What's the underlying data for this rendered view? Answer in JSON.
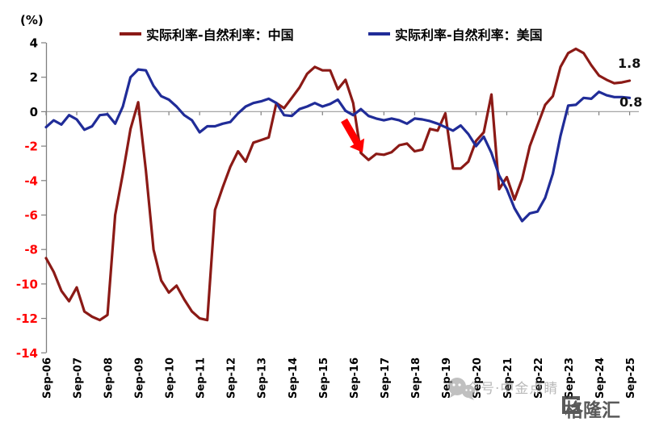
{
  "unit_label": "(%)",
  "legend": {
    "china": {
      "label": "实际利率-自然利率：中国"
    },
    "us": {
      "label": "实际利率-自然利率：美国"
    }
  },
  "annotations": {
    "china_end_value": "1.8",
    "us_end_value": "0.8",
    "arrow_note": "sharp-drop-red-arrow"
  },
  "watermarks": {
    "wechat_text": "公众号·中金点睛",
    "logo_text": "格隆汇"
  },
  "colors": {
    "china": "#8B1A16",
    "us": "#202C98",
    "positive_tick": "#000000",
    "negative_tick": "#FF0000",
    "axis": "#7F7F7F",
    "zero_line": "#A6A6A6",
    "arrow": "#FF0000"
  },
  "chart_data": {
    "type": "line",
    "title": "",
    "xlabel": "",
    "ylabel": "(%)",
    "x_frequency": "quarterly",
    "x_start": "Sep-06",
    "x_end": "Sep-25",
    "x_tick_labels": [
      "Sep-06",
      "Sep-07",
      "Sep-08",
      "Sep-09",
      "Sep-10",
      "Sep-11",
      "Sep-12",
      "Sep-13",
      "Sep-14",
      "Sep-15",
      "Sep-16",
      "Sep-17",
      "Sep-18",
      "Sep-19",
      "Sep-20",
      "Sep-21",
      "Sep-22",
      "Sep-23",
      "Sep-24",
      "Sep-25"
    ],
    "y_ticks": [
      4,
      2,
      0,
      -2,
      -4,
      -6,
      -8,
      -10,
      -12,
      -14
    ],
    "ylim": [
      -14,
      4
    ],
    "grid": "zero-line-only",
    "legend_position": "top",
    "series": [
      {
        "name": "实际利率-自然利率：中国",
        "color": "#8B1A16",
        "end_label": "1.8",
        "values": [
          -8.5,
          -9.3,
          -10.4,
          -11.0,
          -10.2,
          -11.6,
          -11.9,
          -12.1,
          -11.8,
          -6.0,
          -3.6,
          -1.0,
          0.55,
          -3.4,
          -8.0,
          -9.8,
          -10.5,
          -10.1,
          -10.9,
          -11.6,
          -12.0,
          -12.1,
          -5.7,
          -4.4,
          -3.2,
          -2.3,
          -2.9,
          -1.8,
          -1.65,
          -1.5,
          0.5,
          0.2,
          0.8,
          1.4,
          2.2,
          2.6,
          2.4,
          2.4,
          1.3,
          1.85,
          0.5,
          -2.4,
          -2.8,
          -2.45,
          -2.5,
          -2.35,
          -1.95,
          -1.85,
          -2.3,
          -2.2,
          -1.0,
          -1.1,
          -0.1,
          -3.3,
          -3.3,
          -2.9,
          -1.7,
          -1.2,
          1.0,
          -4.5,
          -3.8,
          -5.1,
          -3.9,
          -2.0,
          -0.8,
          0.4,
          0.9,
          2.6,
          3.4,
          3.65,
          3.4,
          2.7,
          2.1,
          1.85,
          1.65,
          1.7,
          1.8
        ]
      },
      {
        "name": "实际利率-自然利率：美国",
        "color": "#202C98",
        "end_label": "0.8",
        "values": [
          -0.9,
          -0.5,
          -0.75,
          -0.2,
          -0.45,
          -1.05,
          -0.85,
          -0.2,
          -0.15,
          -0.7,
          0.3,
          2.0,
          2.45,
          2.4,
          1.5,
          0.9,
          0.7,
          0.3,
          -0.2,
          -0.5,
          -1.2,
          -0.85,
          -0.85,
          -0.7,
          -0.6,
          -0.1,
          0.3,
          0.5,
          0.6,
          0.75,
          0.5,
          -0.2,
          -0.25,
          0.15,
          0.3,
          0.5,
          0.3,
          0.45,
          0.7,
          0.05,
          -0.2,
          0.15,
          -0.25,
          -0.4,
          -0.5,
          -0.4,
          -0.5,
          -0.7,
          -0.4,
          -0.45,
          -0.55,
          -0.7,
          -0.9,
          -1.1,
          -0.8,
          -1.3,
          -2.0,
          -1.45,
          -2.4,
          -3.7,
          -4.5,
          -5.6,
          -6.35,
          -5.9,
          -5.8,
          -5.0,
          -3.6,
          -1.4,
          0.35,
          0.4,
          0.8,
          0.75,
          1.15,
          0.95,
          0.85,
          0.85,
          0.8
        ]
      }
    ]
  }
}
